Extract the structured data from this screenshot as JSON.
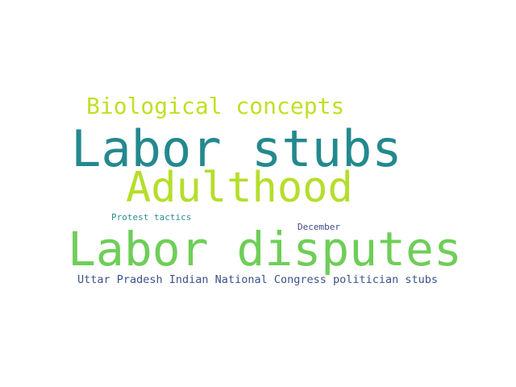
{
  "words": [
    {
      "text": "Biological concepts",
      "color": "#c2df23"
    },
    {
      "text": "Labor stubs",
      "color": "#23898e"
    },
    {
      "text": "Adulthood",
      "color": "#b5de2b"
    },
    {
      "text": "Protest tactics",
      "color": "#2c8f8e"
    },
    {
      "text": "December",
      "color": "#3e4989"
    },
    {
      "text": "Labor disputes",
      "color": "#6ece58"
    },
    {
      "text": "Uttar Pradesh Indian National Congress politician stubs",
      "color": "#3b528b"
    }
  ]
}
